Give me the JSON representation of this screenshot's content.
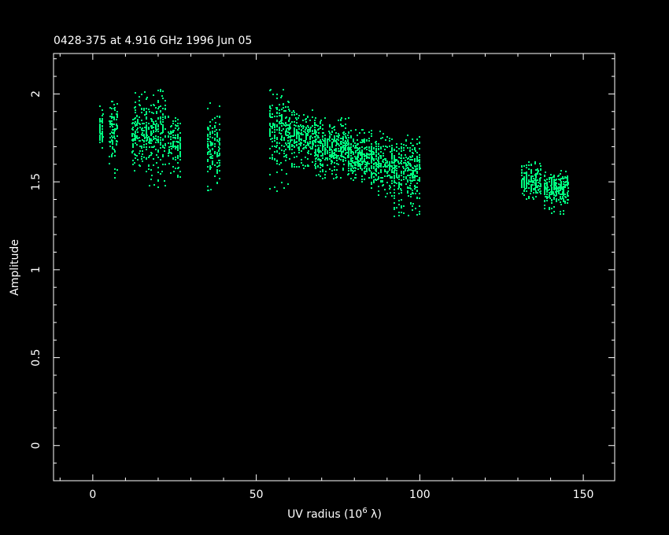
{
  "chart_data": {
    "type": "scatter",
    "title": "0428-375 at 4.916 GHz 1996 Jun 05",
    "xlabel": "UV radius  (10^6 λ)",
    "xlabel_base": "UV radius  (10",
    "xlabel_exp": "6",
    "xlabel_tail": " λ)",
    "ylabel": "Amplitude",
    "xlim": [
      -12,
      159.6
    ],
    "ylim": [
      -0.2,
      2.23
    ],
    "x_ticks": [
      "0",
      "50",
      "100",
      "150"
    ],
    "x_tick_values": [
      0,
      50,
      100,
      150
    ],
    "y_ticks": [
      "0",
      "0.5",
      "1",
      "1.5",
      "2"
    ],
    "y_tick_values": [
      0,
      0.5,
      1,
      1.5,
      2
    ],
    "grid": false,
    "point_color": "#00ff80",
    "background": "#000000",
    "axis_color": "#ffffff",
    "point_clusters": [
      {
        "x_range": [
          2,
          3
        ],
        "amp_center": 1.78,
        "amp_range": [
          1.69,
          1.97
        ]
      },
      {
        "x_range": [
          5,
          7.5
        ],
        "amp_center": 1.79,
        "amp_range": [
          1.52,
          1.98
        ]
      },
      {
        "x_range": [
          12,
          16.5
        ],
        "amp_center": 1.78,
        "amp_range": [
          1.56,
          2.03
        ]
      },
      {
        "x_range": [
          17,
          22.5
        ],
        "amp_center": 1.78,
        "amp_range": [
          1.46,
          2.03
        ]
      },
      {
        "x_range": [
          23,
          27
        ],
        "amp_center": 1.71,
        "amp_range": [
          1.53,
          1.88
        ]
      },
      {
        "x_range": [
          35,
          39
        ],
        "amp_center": 1.7,
        "amp_range": [
          1.43,
          1.97
        ]
      },
      {
        "x_range": [
          54,
          60
        ],
        "amp_center": 1.8,
        "amp_range": [
          1.44,
          2.03
        ]
      },
      {
        "x_range": [
          60,
          68
        ],
        "amp_center": 1.76,
        "amp_range": [
          1.58,
          1.92
        ]
      },
      {
        "x_range": [
          68,
          78
        ],
        "amp_center": 1.7,
        "amp_range": [
          1.52,
          1.87
        ]
      },
      {
        "x_range": [
          78,
          85
        ],
        "amp_center": 1.64,
        "amp_range": [
          1.5,
          1.8
        ]
      },
      {
        "x_range": [
          85,
          92
        ],
        "amp_center": 1.6,
        "amp_range": [
          1.42,
          1.8
        ]
      },
      {
        "x_range": [
          92,
          100
        ],
        "amp_center": 1.57,
        "amp_range": [
          1.31,
          1.78
        ]
      },
      {
        "x_range": [
          131,
          137
        ],
        "amp_center": 1.5,
        "amp_range": [
          1.4,
          1.62
        ]
      },
      {
        "x_range": [
          138,
          145
        ],
        "amp_center": 1.46,
        "amp_range": [
          1.32,
          1.57
        ]
      }
    ]
  }
}
